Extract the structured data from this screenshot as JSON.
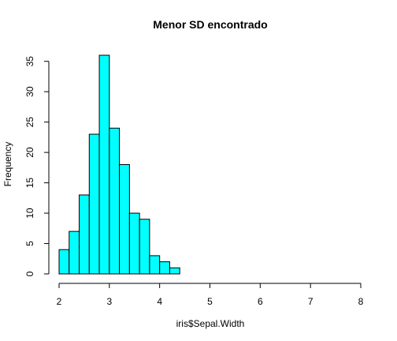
{
  "chart_data": {
    "type": "bar",
    "title": "Menor SD encontrado",
    "xlabel": "iris$Sepal.Width",
    "ylabel": "Frequency",
    "bin_edges": [
      2.0,
      2.2,
      2.4,
      2.6,
      2.8,
      3.0,
      3.2,
      3.4,
      3.6,
      3.8,
      4.0,
      4.2,
      4.4
    ],
    "values": [
      4,
      7,
      13,
      23,
      36,
      24,
      18,
      10,
      9,
      3,
      2,
      1
    ],
    "xlim": [
      2,
      8
    ],
    "ylim": [
      0,
      36
    ],
    "xticks": [
      2,
      3,
      4,
      5,
      6,
      7,
      8
    ],
    "yticks": [
      0,
      5,
      10,
      15,
      20,
      25,
      30,
      35
    ],
    "bar_color": "#00FFFF",
    "grid": false
  }
}
